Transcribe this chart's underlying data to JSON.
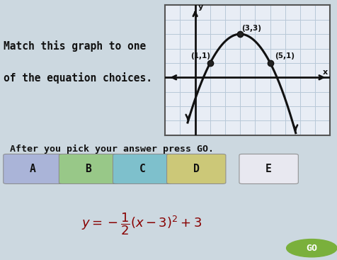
{
  "bg_color_top": "#ccd8e0",
  "bg_color_bottom": "#ddc8c4",
  "title_text_line1": "Match this graph to one",
  "title_text_line2": "of the equation choices.",
  "instruction_text": "After you pick your answer press GO.",
  "tab_labels": [
    "A",
    "B",
    "C",
    "D",
    "E"
  ],
  "tab_colors": [
    "#aab4d8",
    "#98c888",
    "#7ec0cc",
    "#ccc878",
    "#e8e8f0"
  ],
  "points": [
    [
      1,
      1
    ],
    [
      3,
      3
    ],
    [
      5,
      1
    ]
  ],
  "point_labels": [
    "(1,1)",
    "(3,3)",
    "(5,1)"
  ],
  "graph_bg": "#e8edf5",
  "grid_color": "#b8c8d8",
  "curve_color": "#111111",
  "axis_color": "#111111",
  "go_button_color": "#7ab03c",
  "go_button_text_color": "white",
  "blue_stripe_color": "#4878b8",
  "equation_color": "#880000",
  "text_color": "#111111",
  "graph_border_color": "#555555",
  "xlim": [
    -2,
    9
  ],
  "ylim": [
    -4,
    5
  ],
  "curve_xmin": -0.5,
  "curve_xmax": 6.7
}
